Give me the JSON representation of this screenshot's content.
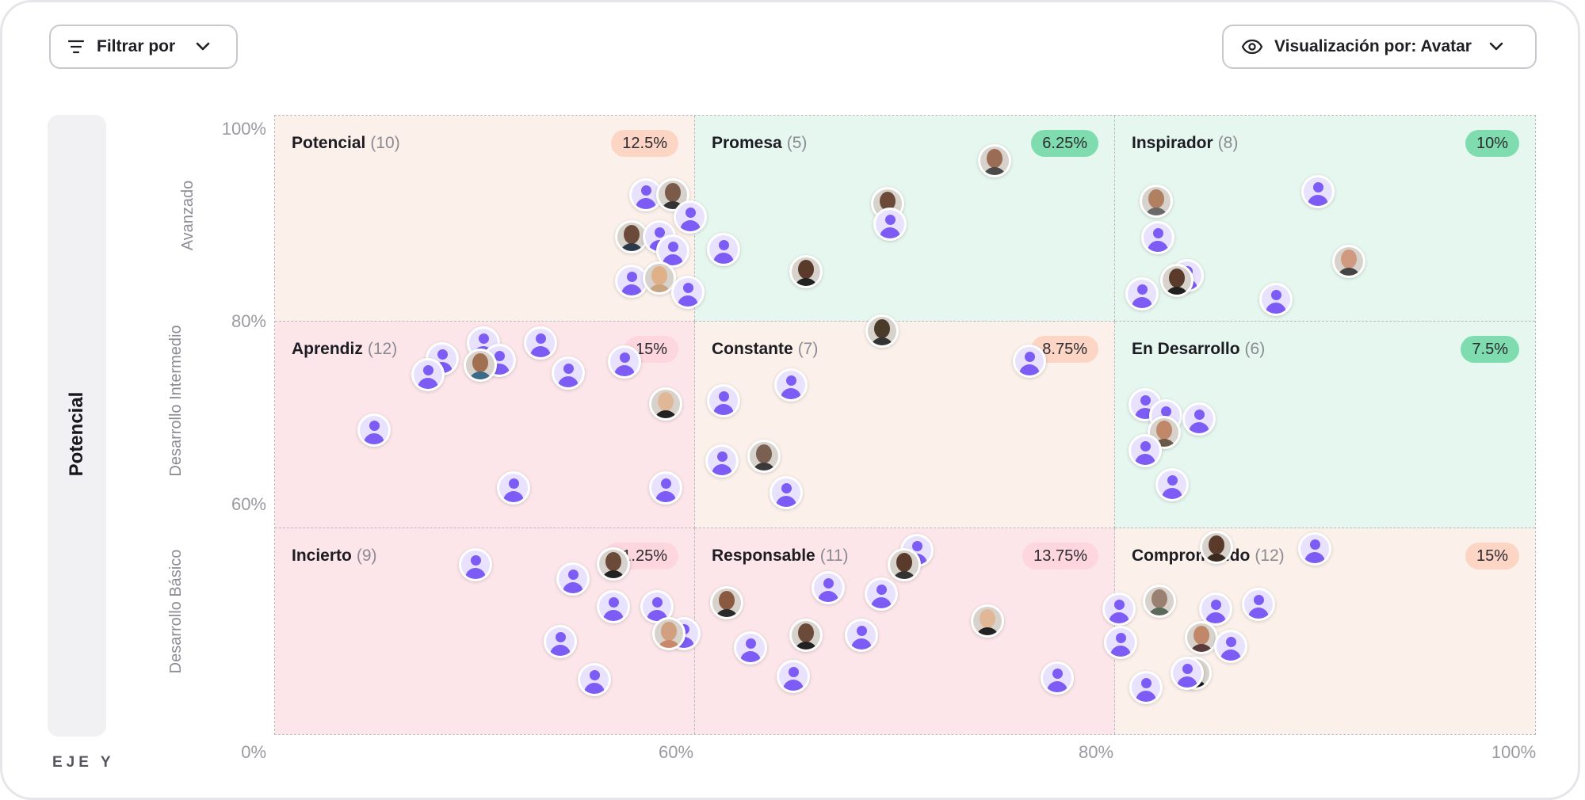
{
  "toolbar": {
    "filter_label": "Filtrar por",
    "view_label": "Visualización por: Avatar"
  },
  "y_axis": {
    "title": "Potencial",
    "footer": "EJE Y",
    "bands": [
      "Avanzado",
      "Desarrollo Intermedio",
      "Desarrollo Básico"
    ],
    "ticks": [
      "100%",
      "80%",
      "60%",
      "0%"
    ]
  },
  "x_axis": {
    "ticks": [
      "60%",
      "80%",
      "100%"
    ]
  },
  "colors": {
    "orange_cell": "#fcf0ea",
    "green_cell": "#e6f7ef",
    "pink_cell": "#fce6ea",
    "orange_badge": "#fdd5c4",
    "green_badge": "#7fdcae",
    "pink_badge": "#fdd6de",
    "avatar_accent": "#7c5cf4"
  },
  "cells": [
    {
      "name": "Potencial",
      "count": "(10)",
      "pct": "12.5%",
      "bg": "orange_cell",
      "badge": "orange_badge"
    },
    {
      "name": "Promesa",
      "count": "(5)",
      "pct": "6.25%",
      "bg": "green_cell",
      "badge": "green_badge"
    },
    {
      "name": "Inspirador",
      "count": "(8)",
      "pct": "10%",
      "bg": "green_cell",
      "badge": "green_badge"
    },
    {
      "name": "Aprendiz",
      "count": "(12)",
      "pct": "15%",
      "bg": "pink_cell",
      "badge": "pink_badge"
    },
    {
      "name": "Constante",
      "count": "(7)",
      "pct": "8.75%",
      "bg": "orange_cell",
      "badge": "orange_badge"
    },
    {
      "name": "En Desarrollo",
      "count": "(6)",
      "pct": "7.5%",
      "bg": "green_cell",
      "badge": "green_badge"
    },
    {
      "name": "Incierto",
      "count": "(9)",
      "pct": "11.25%",
      "bg": "pink_cell",
      "badge": "pink_badge"
    },
    {
      "name": "Responsable",
      "count": "(11)",
      "pct": "13.75%",
      "bg": "pink_cell",
      "badge": "pink_badge"
    },
    {
      "name": "Comprometido",
      "count": "(12)",
      "pct": "15%",
      "bg": "orange_cell",
      "badge": "orange_badge"
    }
  ]
}
